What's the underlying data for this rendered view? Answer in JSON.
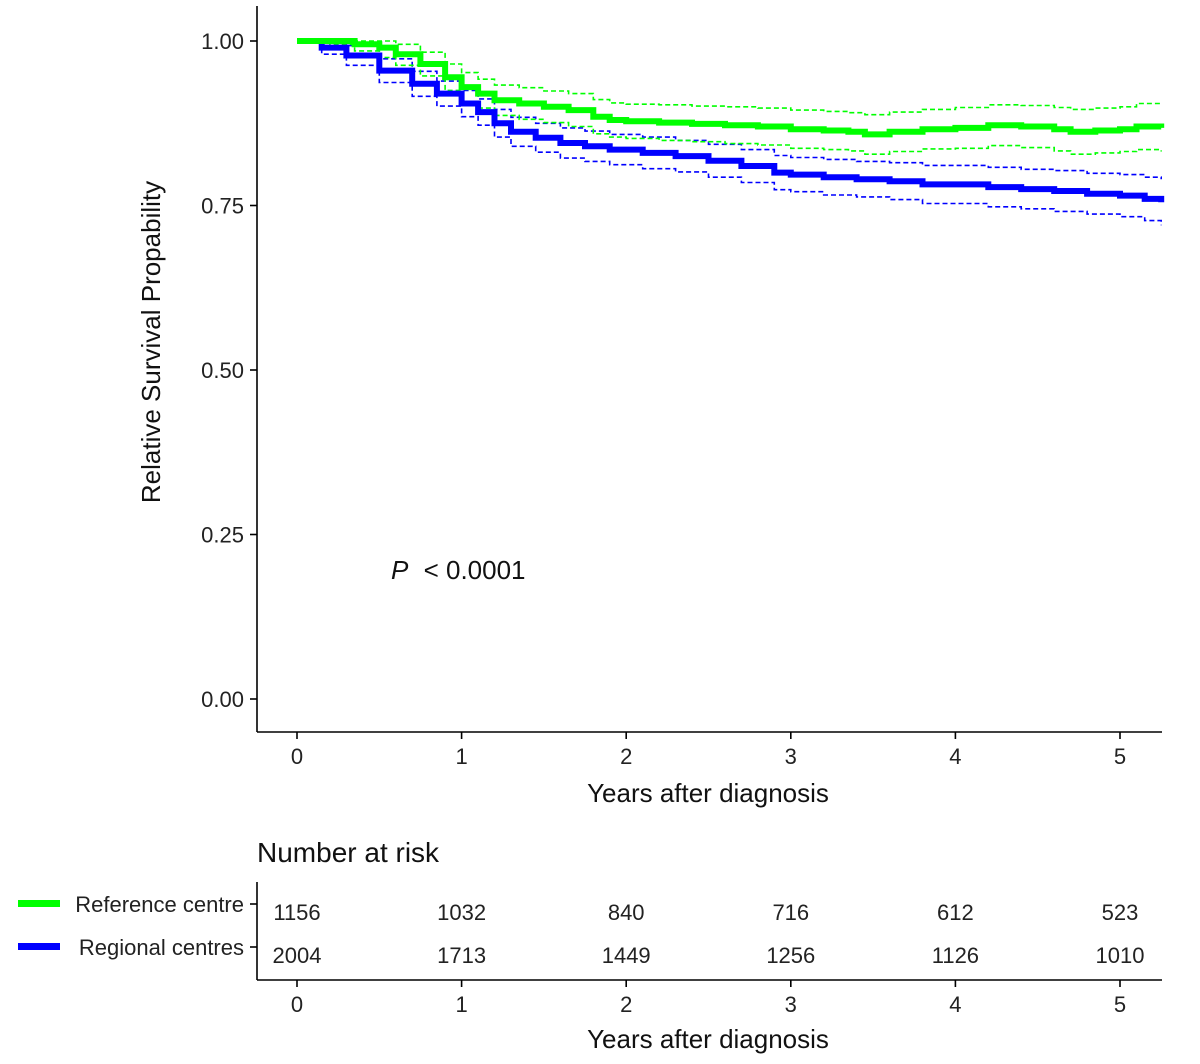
{
  "chart_data": {
    "type": "line",
    "subtype": "kaplan-meier-survival",
    "xlabel": "Years after diagnosis",
    "ylabel": "Relative Survival Propability",
    "xlim": [
      -0.25,
      5.25
    ],
    "ylim": [
      -0.05,
      1.05
    ],
    "x_ticks": [
      "0",
      "1",
      "2",
      "3",
      "4",
      "5"
    ],
    "y_ticks": [
      "0.00",
      "0.25",
      "0.50",
      "0.75",
      "1.00"
    ],
    "annotation": {
      "p_symbol": "P",
      "p_text": "< 0.0001"
    },
    "series": [
      {
        "name": "Reference centre",
        "color": "#00ff00",
        "x": [
          0,
          0.2,
          0.35,
          0.5,
          0.6,
          0.75,
          0.9,
          1.0,
          1.1,
          1.2,
          1.35,
          1.5,
          1.65,
          1.8,
          1.9,
          2.0,
          2.2,
          2.4,
          2.6,
          2.8,
          3.0,
          3.2,
          3.35,
          3.45,
          3.6,
          3.8,
          4.0,
          4.2,
          4.4,
          4.6,
          4.7,
          4.85,
          5.0,
          5.1,
          5.25
        ],
        "values": [
          1.0,
          1.0,
          0.995,
          0.99,
          0.98,
          0.965,
          0.945,
          0.93,
          0.92,
          0.91,
          0.905,
          0.9,
          0.895,
          0.885,
          0.88,
          0.878,
          0.876,
          0.874,
          0.872,
          0.87,
          0.866,
          0.864,
          0.862,
          0.858,
          0.862,
          0.866,
          0.868,
          0.872,
          0.87,
          0.866,
          0.862,
          0.864,
          0.866,
          0.87,
          0.868
        ],
        "ci_upper": [
          1.0,
          1.0,
          1.0,
          1.0,
          0.995,
          0.983,
          0.965,
          0.952,
          0.942,
          0.933,
          0.929,
          0.924,
          0.92,
          0.911,
          0.906,
          0.904,
          0.903,
          0.901,
          0.9,
          0.898,
          0.895,
          0.893,
          0.891,
          0.888,
          0.892,
          0.896,
          0.899,
          0.903,
          0.902,
          0.899,
          0.896,
          0.898,
          0.9,
          0.905,
          0.904
        ],
        "ci_lower": [
          1.0,
          0.995,
          0.985,
          0.975,
          0.963,
          0.947,
          0.925,
          0.908,
          0.898,
          0.887,
          0.881,
          0.876,
          0.87,
          0.859,
          0.854,
          0.852,
          0.849,
          0.847,
          0.844,
          0.842,
          0.837,
          0.835,
          0.833,
          0.828,
          0.832,
          0.836,
          0.837,
          0.841,
          0.838,
          0.833,
          0.828,
          0.83,
          0.832,
          0.835,
          0.832
        ]
      },
      {
        "name": "Regional centres",
        "color": "#0000ff",
        "x": [
          0,
          0.15,
          0.3,
          0.5,
          0.7,
          0.85,
          1.0,
          1.1,
          1.2,
          1.3,
          1.45,
          1.6,
          1.75,
          1.9,
          2.1,
          2.3,
          2.5,
          2.7,
          2.9,
          3.0,
          3.2,
          3.4,
          3.6,
          3.8,
          4.0,
          4.2,
          4.4,
          4.6,
          4.8,
          5.0,
          5.15,
          5.25
        ],
        "values": [
          1.0,
          0.99,
          0.978,
          0.955,
          0.935,
          0.92,
          0.905,
          0.892,
          0.875,
          0.862,
          0.853,
          0.845,
          0.84,
          0.835,
          0.83,
          0.825,
          0.818,
          0.81,
          0.8,
          0.797,
          0.793,
          0.79,
          0.787,
          0.782,
          0.782,
          0.778,
          0.775,
          0.772,
          0.768,
          0.765,
          0.76,
          0.755
        ],
        "ci_upper": [
          1.0,
          1.0,
          0.993,
          0.973,
          0.954,
          0.939,
          0.925,
          0.912,
          0.896,
          0.884,
          0.875,
          0.868,
          0.863,
          0.858,
          0.854,
          0.849,
          0.843,
          0.835,
          0.826,
          0.823,
          0.82,
          0.817,
          0.815,
          0.811,
          0.811,
          0.808,
          0.805,
          0.803,
          0.799,
          0.797,
          0.793,
          0.79
        ],
        "ci_lower": [
          1.0,
          0.98,
          0.963,
          0.937,
          0.916,
          0.901,
          0.885,
          0.872,
          0.854,
          0.84,
          0.831,
          0.822,
          0.817,
          0.812,
          0.806,
          0.801,
          0.793,
          0.785,
          0.774,
          0.771,
          0.766,
          0.763,
          0.759,
          0.753,
          0.753,
          0.748,
          0.745,
          0.741,
          0.737,
          0.733,
          0.727,
          0.72
        ]
      }
    ],
    "risk_table": {
      "title": "Number at risk",
      "xlabel": "Years after diagnosis",
      "x_ticks": [
        "0",
        "1",
        "2",
        "3",
        "4",
        "5"
      ],
      "rows": [
        {
          "label": "Reference centre",
          "color": "#00ff00",
          "values": [
            "1156",
            "1032",
            "840",
            "716",
            "612",
            "523"
          ]
        },
        {
          "label": "Regional centres",
          "color": "#0000ff",
          "values": [
            "2004",
            "1713",
            "1449",
            "1256",
            "1126",
            "1010"
          ]
        }
      ]
    }
  }
}
